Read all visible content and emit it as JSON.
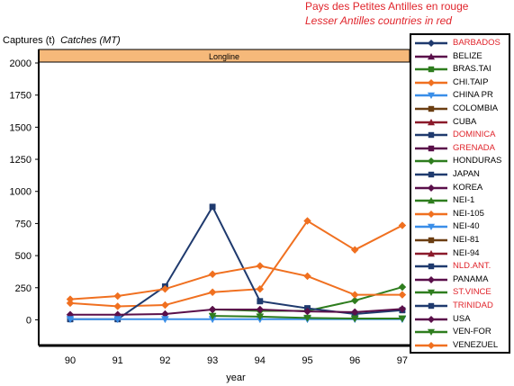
{
  "notes": {
    "fr": "Pays des Petites Antilles en rouge",
    "en": "Lesser Antilles countries in red"
  },
  "axis": {
    "ylabel_fr": "Captures (t)",
    "ylabel_en": "Catches (MT)",
    "xlabel": "year"
  },
  "chart_data": {
    "type": "line",
    "title": "Longline",
    "x": [
      "90",
      "91",
      "92",
      "93",
      "94",
      "95",
      "96",
      "97"
    ],
    "ylim": [
      -200,
      2000
    ],
    "yticks": [
      0,
      250,
      500,
      750,
      1000,
      1250,
      1500,
      1750,
      2000
    ],
    "series": [
      {
        "name": "BARBADOS",
        "color": "#1f3a6e",
        "label_color": "#e0242b",
        "marker": "diamond",
        "values": [
          null,
          null,
          null,
          null,
          null,
          null,
          null,
          null
        ]
      },
      {
        "name": "BELIZE",
        "color": "#5a0f4a",
        "label_color": "#000000",
        "marker": "triangle",
        "values": [
          null,
          null,
          null,
          null,
          null,
          null,
          null,
          null
        ]
      },
      {
        "name": "BRAS.TAI",
        "color": "#2e7d1e",
        "label_color": "#000000",
        "marker": "square",
        "values": [
          null,
          null,
          null,
          null,
          null,
          null,
          null,
          null
        ]
      },
      {
        "name": "CHI.TAIP",
        "color": "#f07020",
        "label_color": "#000000",
        "marker": "diamond",
        "values": [
          130,
          105,
          115,
          215,
          240,
          770,
          545,
          735
        ]
      },
      {
        "name": "CHINA PR",
        "color": "#3a8ee8",
        "label_color": "#000000",
        "marker": "triangle-down",
        "values": [
          null,
          null,
          null,
          null,
          null,
          null,
          null,
          null
        ]
      },
      {
        "name": "COLOMBIA",
        "color": "#6b3e12",
        "label_color": "#000000",
        "marker": "square",
        "values": [
          null,
          null,
          null,
          null,
          null,
          null,
          null,
          null
        ]
      },
      {
        "name": "CUBA",
        "color": "#8b1a2b",
        "label_color": "#000000",
        "marker": "triangle",
        "values": [
          null,
          null,
          null,
          null,
          null,
          null,
          null,
          null
        ]
      },
      {
        "name": "DOMINICA",
        "color": "#1f3a6e",
        "label_color": "#e0242b",
        "marker": "square",
        "values": [
          null,
          null,
          null,
          null,
          null,
          null,
          null,
          null
        ]
      },
      {
        "name": "GRENADA",
        "color": "#5a0f4a",
        "label_color": "#e0242b",
        "marker": "square",
        "values": [
          null,
          null,
          null,
          null,
          null,
          null,
          null,
          null
        ]
      },
      {
        "name": "HONDURAS",
        "color": "#2e7d1e",
        "label_color": "#000000",
        "marker": "diamond",
        "values": [
          null,
          null,
          null,
          80,
          70,
          70,
          150,
          255
        ]
      },
      {
        "name": "JAPAN",
        "color": "#1f3a6e",
        "label_color": "#000000",
        "marker": "square",
        "values": [
          5,
          5,
          260,
          880,
          145,
          90,
          45,
          75
        ]
      },
      {
        "name": "KOREA",
        "color": "#5a0f4a",
        "label_color": "#000000",
        "marker": "diamond",
        "values": [
          40,
          40,
          45,
          80,
          80,
          65,
          60,
          85
        ]
      },
      {
        "name": "NEI-1",
        "color": "#2e7d1e",
        "label_color": "#000000",
        "marker": "triangle",
        "values": [
          null,
          null,
          null,
          null,
          null,
          null,
          null,
          null
        ]
      },
      {
        "name": "NEI-105",
        "color": "#f07020",
        "label_color": "#000000",
        "marker": "diamond",
        "values": [
          160,
          185,
          240,
          355,
          420,
          340,
          195,
          195
        ]
      },
      {
        "name": "NEI-40",
        "color": "#3a8ee8",
        "label_color": "#000000",
        "marker": "triangle-down",
        "values": [
          5,
          5,
          5,
          5,
          5,
          5,
          5,
          5
        ]
      },
      {
        "name": "NEI-81",
        "color": "#6b3e12",
        "label_color": "#000000",
        "marker": "square",
        "values": [
          null,
          null,
          null,
          null,
          null,
          null,
          null,
          null
        ]
      },
      {
        "name": "NEI-94",
        "color": "#8b1a2b",
        "label_color": "#000000",
        "marker": "triangle",
        "values": [
          null,
          null,
          null,
          null,
          null,
          null,
          null,
          null
        ]
      },
      {
        "name": "NLD.ANT.",
        "color": "#1f3a6e",
        "label_color": "#e0242b",
        "marker": "square",
        "values": [
          null,
          null,
          null,
          null,
          null,
          null,
          null,
          null
        ]
      },
      {
        "name": "PANAMA",
        "color": "#5a0f4a",
        "label_color": "#000000",
        "marker": "diamond",
        "values": [
          null,
          null,
          null,
          null,
          null,
          null,
          null,
          null
        ]
      },
      {
        "name": "ST.VINCE",
        "color": "#2e7d1e",
        "label_color": "#e0242b",
        "marker": "triangle-down",
        "values": [
          null,
          null,
          null,
          30,
          25,
          15,
          10,
          10
        ]
      },
      {
        "name": "TRINIDAD",
        "color": "#1f3a6e",
        "label_color": "#e0242b",
        "marker": "square",
        "values": [
          null,
          null,
          null,
          null,
          null,
          null,
          null,
          null
        ]
      },
      {
        "name": "USA",
        "color": "#5a0f4a",
        "label_color": "#000000",
        "marker": "diamond",
        "values": [
          null,
          null,
          null,
          null,
          null,
          null,
          null,
          null
        ]
      },
      {
        "name": "VEN-FOR",
        "color": "#2e7d1e",
        "label_color": "#000000",
        "marker": "triangle-down",
        "values": [
          null,
          null,
          null,
          null,
          null,
          null,
          null,
          null
        ]
      },
      {
        "name": "VENEZUEL",
        "color": "#f07020",
        "label_color": "#000000",
        "marker": "diamond",
        "values": [
          null,
          null,
          null,
          null,
          null,
          null,
          null,
          null
        ]
      }
    ]
  }
}
